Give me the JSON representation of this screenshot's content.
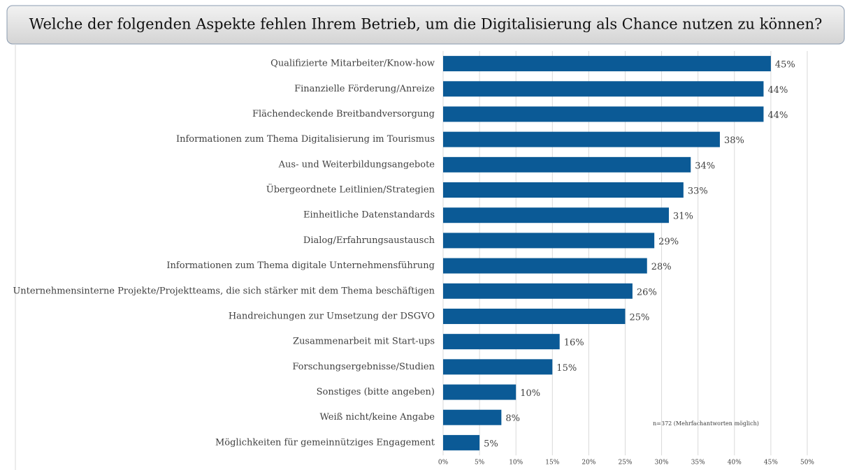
{
  "chart_data": {
    "type": "bar",
    "orientation": "horizontal",
    "title": "Welche der folgenden Aspekte fehlen Ihrem Betrieb, um die Digitalisierung als Chance nutzen zu können?",
    "annotation": "n=372 (Mehrfachantworten möglich)",
    "categories": [
      "Qualifizierte Mitarbeiter/Know-how",
      "Finanzielle Förderung/Anreize",
      "Flächendeckende Breitbandversorgung",
      "Informationen zum Thema Digitalisierung im Tourismus",
      "Aus- und Weiterbildungsangebote",
      "Übergeordnete Leitlinien/Strategien",
      "Einheitliche Datenstandards",
      "Dialog/Erfahrungsaustausch",
      "Informationen zum Thema digitale Unternehmensführung",
      "Unternehmensinterne Projekte/Projektteams, die sich stärker mit dem Thema beschäftigen",
      "Handreichungen zur Umsetzung der DSGVO",
      "Zusammenarbeit mit Start-ups",
      "Forschungsergebnisse/Studien",
      "Sonstiges (bitte angeben)",
      "Weiß nicht/keine Angabe",
      "Möglichkeiten für gemeinnütziges Engagement"
    ],
    "values": [
      45,
      44,
      44,
      38,
      34,
      33,
      31,
      29,
      28,
      26,
      25,
      16,
      15,
      10,
      8,
      5
    ],
    "value_labels": [
      "45%",
      "44%",
      "44%",
      "38%",
      "34%",
      "33%",
      "31%",
      "29%",
      "28%",
      "26%",
      "25%",
      "16%",
      "15%",
      "10%",
      "8%",
      "5%"
    ],
    "color": "#0b5a96",
    "xlim": [
      0,
      50
    ],
    "xticks": [
      {
        "value": 0,
        "label": "0%"
      },
      {
        "value": 5,
        "label": "5%"
      },
      {
        "value": 10,
        "label": "10%"
      },
      {
        "value": 15,
        "label": "15%"
      },
      {
        "value": 20,
        "label": "20%"
      },
      {
        "value": 25,
        "label": "25%"
      },
      {
        "value": 30,
        "label": "30%"
      },
      {
        "value": 35,
        "label": "35%"
      },
      {
        "value": 40,
        "label": "40%"
      },
      {
        "value": 45,
        "label": "45%"
      },
      {
        "value": 50,
        "label": "50%"
      }
    ],
    "grid": true
  }
}
